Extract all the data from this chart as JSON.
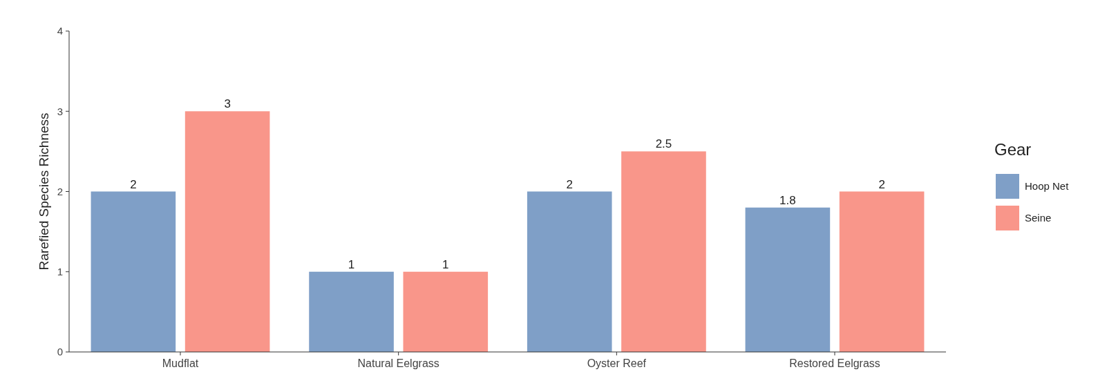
{
  "chart_data": {
    "type": "bar",
    "ylabel": "Rarefied Species Richness",
    "legend_title": "Gear",
    "categories": [
      "Mudflat",
      "Natural Eelgrass",
      "Oyster Reef",
      "Restored Eelgrass"
    ],
    "series": [
      {
        "name": "Hoop Net",
        "color": "#7f9fc7",
        "values": [
          2,
          1,
          2,
          1.8
        ]
      },
      {
        "name": "Seine",
        "color": "#f9968a",
        "values": [
          3,
          1,
          2.5,
          2
        ]
      }
    ],
    "ylim": [
      0,
      4
    ],
    "yticks": [
      0,
      1,
      2,
      3,
      4
    ],
    "data_labels": true,
    "legend": "right",
    "grid": false
  }
}
